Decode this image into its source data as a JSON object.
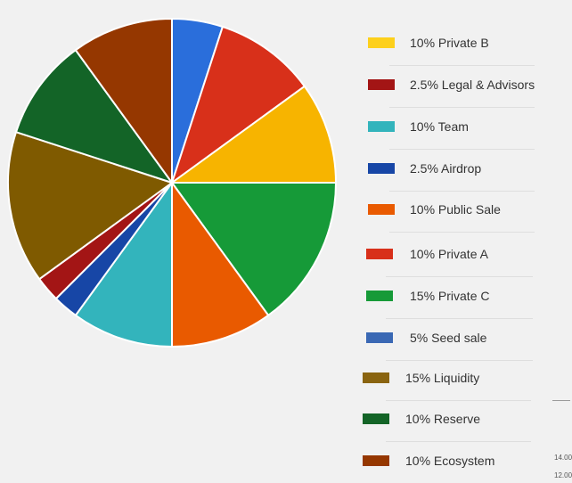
{
  "chart_data": {
    "type": "pie",
    "slices": [
      {
        "name": "Seed sale",
        "value": 5,
        "color": "#2a6edb"
      },
      {
        "name": "Private A",
        "value": 10,
        "color": "#d8301a"
      },
      {
        "name": "Private B",
        "value": 10,
        "color": "#f7b400"
      },
      {
        "name": "Private C",
        "value": 15,
        "color": "#169a38"
      },
      {
        "name": "Public Sale",
        "value": 10,
        "color": "#e95a00"
      },
      {
        "name": "Team",
        "value": 10,
        "color": "#33b4bc"
      },
      {
        "name": "Airdrop",
        "value": 2.5,
        "color": "#1746a6"
      },
      {
        "name": "Legal & Advisors",
        "value": 2.5,
        "color": "#a31515"
      },
      {
        "name": "Liquidity",
        "value": 15,
        "color": "#7f5a00"
      },
      {
        "name": "Reserve",
        "value": 10,
        "color": "#136427"
      },
      {
        "name": "Ecosystem",
        "value": 10,
        "color": "#953700"
      }
    ]
  },
  "legend": [
    {
      "label": "10% Private B",
      "color": "#fdd01c"
    },
    {
      "label": "2.5% Legal & Advisors",
      "color": "#a31515"
    },
    {
      "label": "10% Team",
      "color": "#33b4bc"
    },
    {
      "label": "2.5% Airdrop",
      "color": "#1746a6"
    },
    {
      "label": "10% Public Sale",
      "color": "#e95a00"
    },
    {
      "label": "10% Private A",
      "color": "#d8301a"
    },
    {
      "label": "15% Private C",
      "color": "#169a38"
    },
    {
      "label": "5% Seed sale",
      "color": "#3a68b4"
    },
    {
      "label": "15% Liquidity",
      "color": "#8a6410"
    },
    {
      "label": "10% Reserve",
      "color": "#136427"
    },
    {
      "label": "10% Ecosystem",
      "color": "#953700"
    }
  ],
  "edge_labels": [
    "14.00",
    "12.00"
  ]
}
